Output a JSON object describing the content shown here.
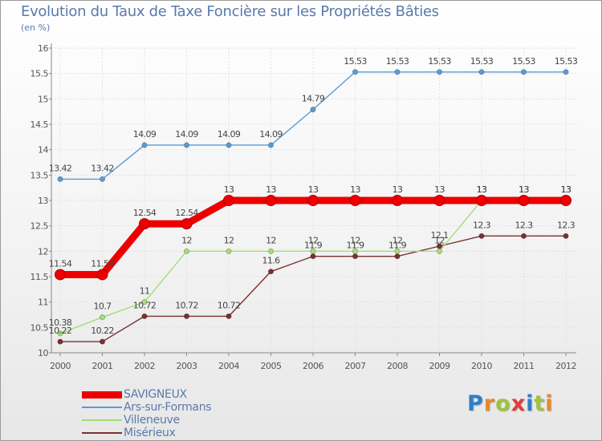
{
  "chart_data": {
    "type": "line",
    "title": "Evolution du Taux de Taxe Foncière sur les Propriétés Bâties",
    "ylabel": "(en %)",
    "xlabel": "",
    "ylim": [
      10,
      16
    ],
    "y_ticks": [
      "10",
      "10.5",
      "11",
      "11.5",
      "12",
      "12.5",
      "13",
      "13.5",
      "14",
      "14.5",
      "15",
      "15.5",
      "16"
    ],
    "categories": [
      "2000",
      "2001",
      "2002",
      "2003",
      "2004",
      "2005",
      "2006",
      "2007",
      "2008",
      "2009",
      "2010",
      "2011",
      "2012"
    ],
    "series": [
      {
        "name": "Ars-sur-Formans",
        "color": "#5b9bd5",
        "values": [
          13.42,
          13.42,
          14.09,
          14.09,
          14.09,
          14.09,
          14.79,
          15.53,
          15.53,
          15.53,
          15.53,
          15.53,
          15.53
        ],
        "labels": [
          "13.42",
          "13.42",
          "14.09",
          "14.09",
          "14.09",
          "14.09",
          "14.79",
          "15.53",
          "15.53",
          "15.53",
          "15.53",
          "15.53",
          "15.53"
        ]
      },
      {
        "name": "Misérieux",
        "color": "#7a2f34",
        "values": [
          10.22,
          10.22,
          10.72,
          10.72,
          10.72,
          11.6,
          11.9,
          11.9,
          11.9,
          12.1,
          12.3,
          12.3,
          12.3
        ],
        "labels": [
          "10.22",
          "10.22",
          "10.72",
          "10.72",
          "10.72",
          "11.6",
          "11.9",
          "11.9",
          "11.9",
          "12.1",
          "12.3",
          "12.3",
          "12.3"
        ]
      },
      {
        "name": "Villeneuve",
        "color": "#a4dd78",
        "values": [
          10.38,
          10.7,
          11,
          12,
          12,
          12,
          12,
          12,
          12,
          12,
          13,
          13,
          13
        ],
        "labels": [
          "10.38",
          "10.7",
          "11",
          "12",
          "12",
          "12",
          "12",
          "12",
          "12",
          "12",
          "13",
          "13",
          "13"
        ]
      },
      {
        "name": "SAVIGNEUX",
        "color": "#ee0000",
        "values": [
          11.54,
          11.54,
          12.54,
          12.54,
          13,
          13,
          13,
          13,
          13,
          13,
          13,
          13,
          13
        ],
        "labels": [
          "11.54",
          "11.54",
          "12.54",
          "12.54",
          "13",
          "13",
          "13",
          "13",
          "13",
          "13",
          "13",
          "13",
          "13"
        ]
      }
    ],
    "legend": [
      {
        "name": "SAVIGNEUX",
        "color": "#ee0000",
        "thick": true
      },
      {
        "name": "Ars-sur-Formans",
        "color": "#5b9bd5",
        "thick": false
      },
      {
        "name": "Villeneuve",
        "color": "#a4dd78",
        "thick": false
      },
      {
        "name": "Misérieux",
        "color": "#7a2f34",
        "thick": false
      }
    ]
  },
  "branding": {
    "logo_letters": [
      "P",
      "r",
      "o",
      "x",
      "i",
      "t",
      "i"
    ],
    "logo_colors": [
      "#2f7fc9",
      "#e7892a",
      "#9bc53d",
      "#e23b3b",
      "#2f7fc9",
      "#9bc53d",
      "#e7892a"
    ]
  }
}
